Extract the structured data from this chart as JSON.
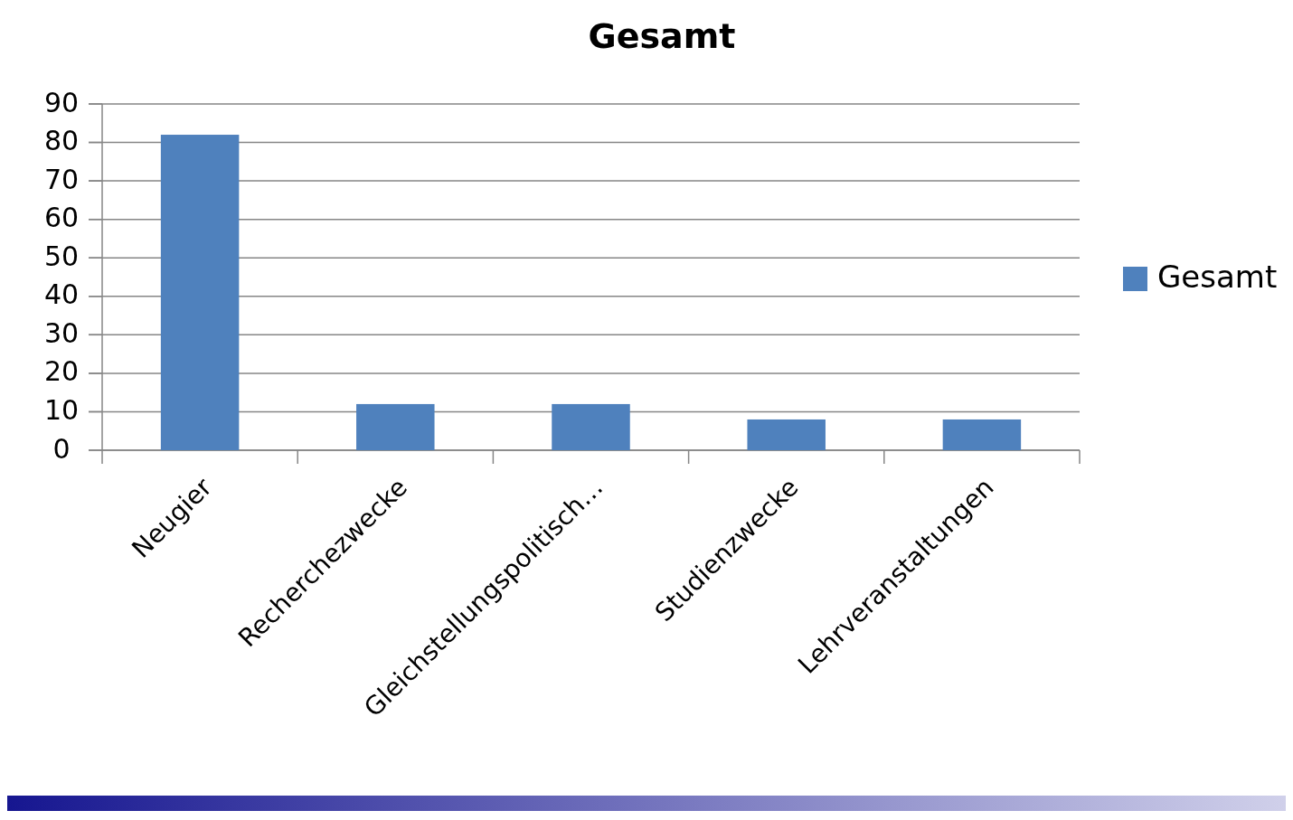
{
  "chart_data": {
    "type": "bar",
    "title": "Gesamt",
    "categories": [
      "Neugier",
      "Recherchezwecke",
      "Gleichstellungspolitisch…",
      "Studienzwecke",
      "Lehrveranstaltungen"
    ],
    "series": [
      {
        "name": "Gesamt",
        "color": "#4f81bd",
        "values": [
          82,
          12,
          12,
          8,
          8
        ]
      }
    ],
    "ylim": [
      0,
      90
    ],
    "yticks": [
      0,
      10,
      20,
      30,
      40,
      50,
      60,
      70,
      80,
      90
    ],
    "grid": "y",
    "legend": "right"
  }
}
